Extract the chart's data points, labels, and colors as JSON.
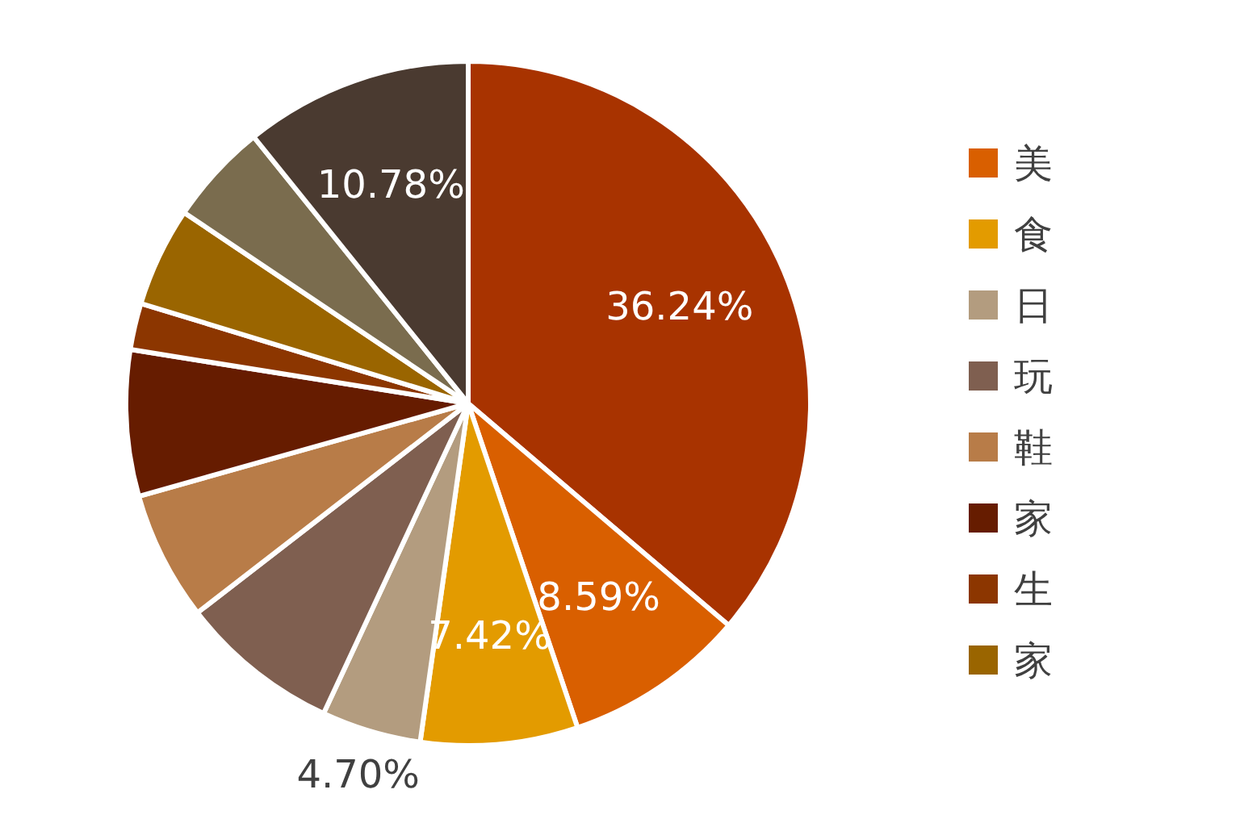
{
  "chart_data": {
    "type": "pie",
    "categories": [
      null,
      "美",
      "食",
      "日",
      "玩",
      "鞋",
      "家",
      "生",
      "家",
      null,
      null
    ],
    "values": [
      36.24,
      8.59,
      7.42,
      4.7,
      7.58,
      6.1,
      6.9,
      2.2,
      4.7,
      4.8,
      10.78
    ],
    "colors": [
      "#a83300",
      "#d95f00",
      "#e39b00",
      "#b39c7f",
      "#7f5f50",
      "#b87c48",
      "#661c00",
      "#8c3600",
      "#9a6500",
      "#7a6c4e",
      "#4a3a30"
    ],
    "value_labels": [
      "36.24%",
      "8.59%",
      "7.42%",
      "4.70%",
      null,
      null,
      null,
      null,
      null,
      null,
      "10.78%"
    ],
    "legend": "right"
  }
}
